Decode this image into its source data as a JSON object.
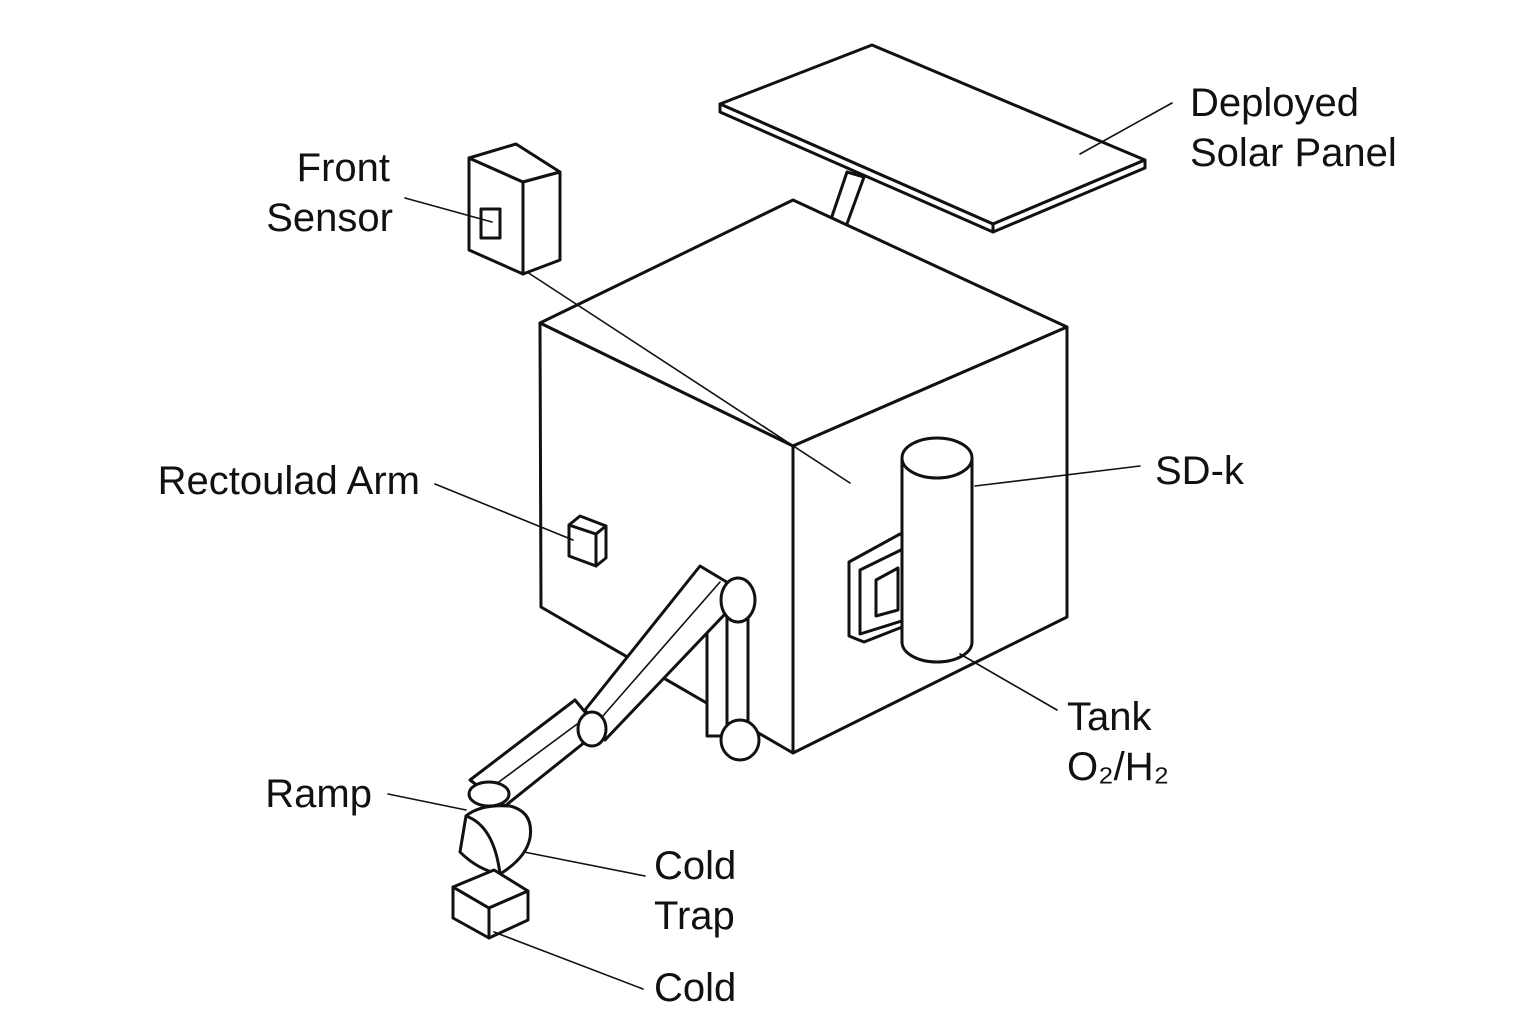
{
  "labels": {
    "deployed_solar_panel": [
      "Deployed",
      "Solar Panel"
    ],
    "front_sensor": [
      "Front",
      "Sensor"
    ],
    "arm": "Rectoulad Arm",
    "sd_k": "SD-k",
    "tank": [
      "Tank",
      "O₂/H₂"
    ],
    "ramp": "Ramp",
    "cold_trap": [
      "Cold",
      "Trap"
    ],
    "cold": "Cold"
  },
  "colors": {
    "line": "#111111",
    "background": "#ffffff"
  }
}
